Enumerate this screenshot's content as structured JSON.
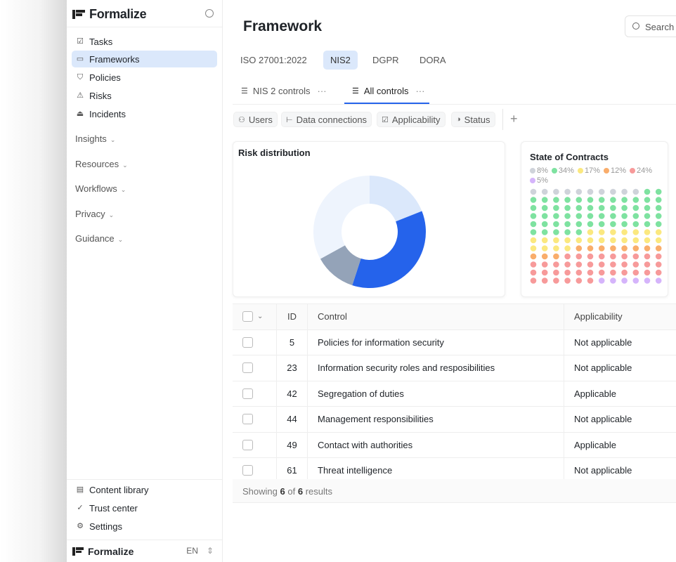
{
  "app": {
    "name": "Formalize",
    "lang": "EN"
  },
  "sidebar": {
    "items": [
      {
        "label": "Tasks",
        "icon": "calendar-check-icon"
      },
      {
        "label": "Frameworks",
        "icon": "folder-icon",
        "active": true
      },
      {
        "label": "Policies",
        "icon": "shield-icon"
      },
      {
        "label": "Risks",
        "icon": "warning-icon"
      },
      {
        "label": "Incidents",
        "icon": "alarm-icon"
      }
    ],
    "groups": [
      "Insights",
      "Resources",
      "Workflows",
      "Privacy",
      "Guidance"
    ],
    "bottom": [
      {
        "label": "Content library",
        "icon": "book-icon"
      },
      {
        "label": "Trust center",
        "icon": "check-circle-icon"
      },
      {
        "label": "Settings",
        "icon": "gear-icon"
      }
    ]
  },
  "header": {
    "title": "Framework",
    "search_placeholder": "Search"
  },
  "frameworks": [
    "ISO 27001:2022",
    "NIS2",
    "DGPR",
    "DORA"
  ],
  "frameworks_active": "NIS2",
  "views": [
    {
      "label": "NIS 2 controls"
    },
    {
      "label": "All controls",
      "active": true
    }
  ],
  "filters": [
    {
      "label": "Users",
      "icon": "user-icon"
    },
    {
      "label": "Data connections",
      "icon": "hierarchy-icon"
    },
    {
      "label": "Applicability",
      "icon": "checkbox-icon"
    },
    {
      "label": "Status",
      "icon": "half-circle-icon"
    }
  ],
  "colors": {
    "accent": "#2563eb",
    "active_bg": "#dbe8fb"
  },
  "chart_data": [
    {
      "type": "pie",
      "title": "Risk distribution",
      "donut": true,
      "values": [
        19,
        36,
        12,
        33
      ],
      "colors": [
        "#dbe8fb",
        "#2563eb",
        "#94a3b8",
        "#eef4fd"
      ]
    },
    {
      "type": "waffle",
      "title": "State of Contracts",
      "series": [
        {
          "label": "8%",
          "value": 8,
          "color": "#cfd3da"
        },
        {
          "label": "34%",
          "value": 34,
          "color": "#7ee2a0"
        },
        {
          "label": "17%",
          "value": 17,
          "color": "#fbe87f"
        },
        {
          "label": "12%",
          "value": 12,
          "color": "#f9ad6b"
        },
        {
          "label": "24%",
          "value": 24,
          "color": "#f79a9a"
        },
        {
          "label": "5%",
          "value": 5,
          "color": "#d5b4fb"
        }
      ],
      "dot_counts": [
        10,
        55,
        23,
        11,
        39,
        6
      ]
    }
  ],
  "table": {
    "columns": [
      "ID",
      "Control",
      "Applicability"
    ],
    "rows": [
      [
        "5",
        "Policies for information security",
        "Not applicable"
      ],
      [
        "23",
        "Information security roles and resposibilities",
        "Not applicable"
      ],
      [
        "42",
        "Segregation of duties",
        "Applicable"
      ],
      [
        "44",
        "Management responsibilities",
        "Not applicable"
      ],
      [
        "49",
        "Contact with authorities",
        "Applicable"
      ],
      [
        "61",
        "Threat intelligence",
        "Not applicable"
      ]
    ],
    "footer": {
      "prefix": "Showing",
      "shown": "6",
      "of": "of",
      "total": "6",
      "suffix": "results"
    }
  }
}
